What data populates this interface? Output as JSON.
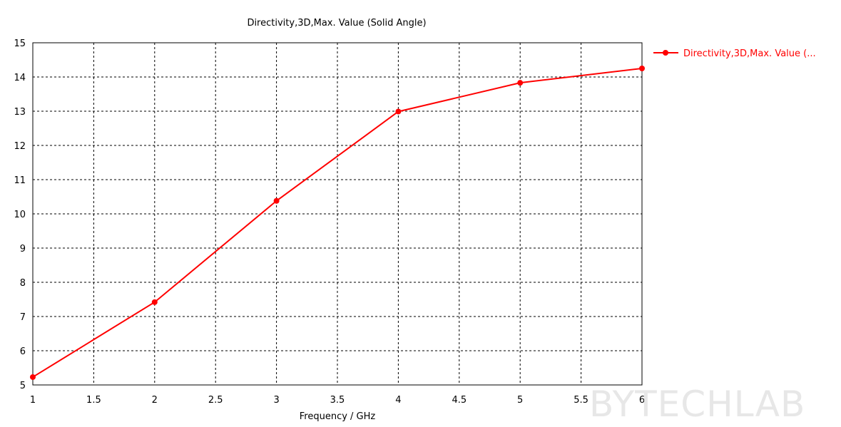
{
  "chart_data": {
    "type": "line",
    "title": "Directivity,3D,Max. Value (Solid Angle)",
    "xlabel": "Frequency / GHz",
    "ylabel": "",
    "xlim": [
      1,
      6
    ],
    "ylim": [
      5,
      15
    ],
    "x_ticks": [
      "1",
      "1.5",
      "2",
      "2.5",
      "3",
      "3.5",
      "4",
      "4.5",
      "5",
      "5.5",
      "6"
    ],
    "y_ticks": [
      "5",
      "6",
      "7",
      "8",
      "9",
      "10",
      "11",
      "12",
      "13",
      "14",
      "15"
    ],
    "grid": true,
    "legend_position": "right",
    "series": [
      {
        "name": "Directivity,3D,Max. Value (...",
        "color": "#ff0000",
        "marker": "circle",
        "x": [
          1,
          2,
          3,
          4,
          5,
          6
        ],
        "y": [
          5.23,
          7.42,
          10.38,
          12.99,
          13.83,
          14.25
        ]
      }
    ]
  },
  "watermark": "BYTECHLAB"
}
